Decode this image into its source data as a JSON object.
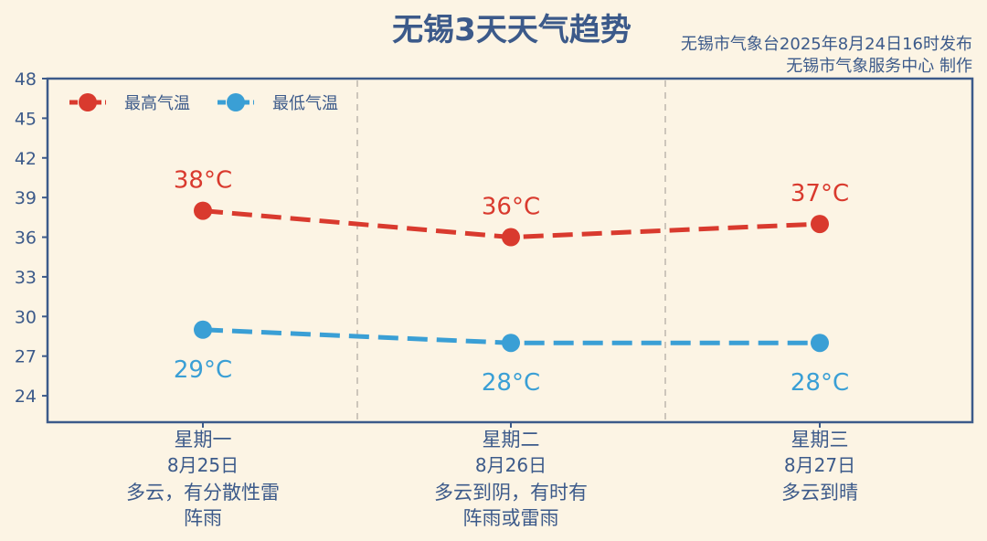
{
  "chart_data": {
    "type": "line",
    "title": "无锡3天天气趋势",
    "source_lines": [
      "无锡市气象台2025年8月24日16时发布",
      "无锡市气象服务中心 制作"
    ],
    "ylim": [
      22,
      48
    ],
    "yticks": [
      24,
      27,
      30,
      33,
      36,
      39,
      42,
      45,
      48
    ],
    "categories": [
      {
        "day": "星期一",
        "date": "8月25日",
        "desc": [
          "多云，有分散性雷",
          "阵雨"
        ]
      },
      {
        "day": "星期二",
        "date": "8月26日",
        "desc": [
          "多云到阴，有时有",
          "阵雨或雷雨"
        ]
      },
      {
        "day": "星期三",
        "date": "8月27日",
        "desc": [
          "多云到晴"
        ]
      }
    ],
    "series": [
      {
        "name": "最高气温",
        "color": "#d93a2e",
        "values": [
          38,
          36,
          37
        ],
        "labels": [
          "38°C",
          "36°C",
          "37°C"
        ],
        "label_pos": "above"
      },
      {
        "name": "最低气温",
        "color": "#3a9fd5",
        "values": [
          29,
          28,
          28
        ],
        "labels": [
          "29°C",
          "28°C",
          "28°C"
        ],
        "label_pos": "below"
      }
    ],
    "legend": "top-left",
    "grid": "vertical dashed separators"
  }
}
